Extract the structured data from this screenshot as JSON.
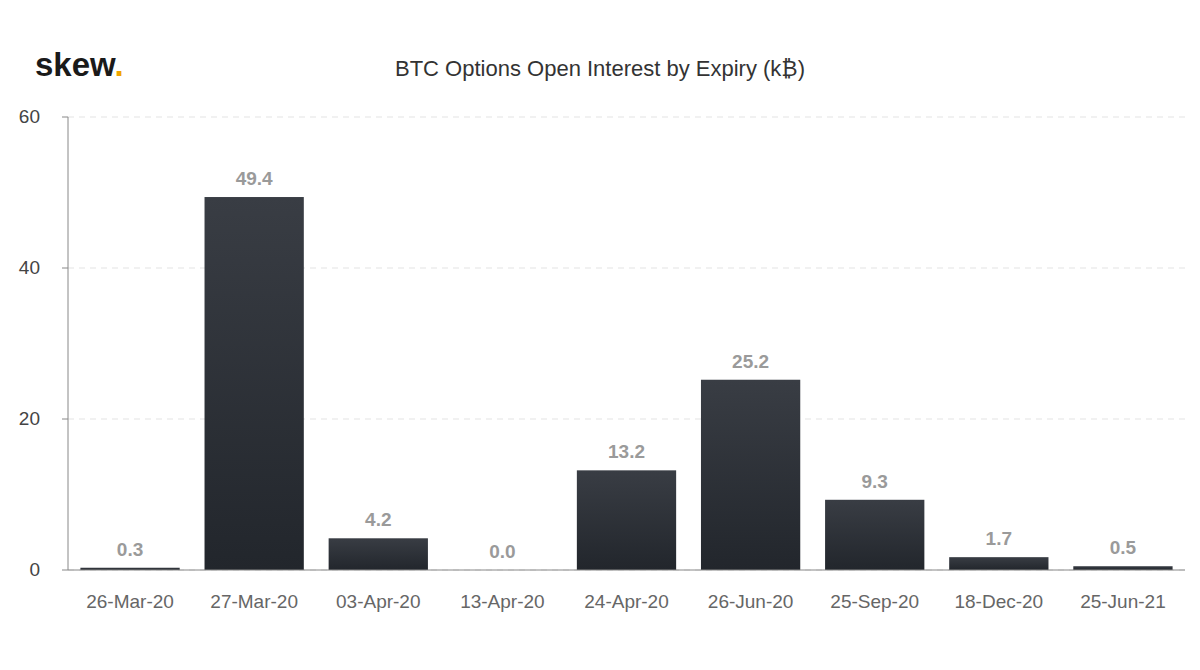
{
  "chart_data": {
    "type": "bar",
    "logo": "skew.",
    "title": "BTC Options Open Interest by Expiry (k₿)",
    "categories": [
      "26-Mar-20",
      "27-Mar-20",
      "03-Apr-20",
      "13-Apr-20",
      "24-Apr-20",
      "26-Jun-20",
      "25-Sep-20",
      "18-Dec-20",
      "25-Jun-21"
    ],
    "values": [
      0.3,
      49.4,
      4.2,
      0,
      13.2,
      25.2,
      9.3,
      1.7,
      0.5
    ],
    "value_labels": [
      "0.3",
      "49.4",
      "4.2",
      "0.0",
      "13.2",
      "25.2",
      "9.3",
      "1.7",
      "0.5"
    ],
    "color": "#2c3138",
    "ylim": [
      0,
      60
    ],
    "yticks": [
      0,
      20,
      40,
      60
    ],
    "grid": true,
    "data_labels": true
  }
}
